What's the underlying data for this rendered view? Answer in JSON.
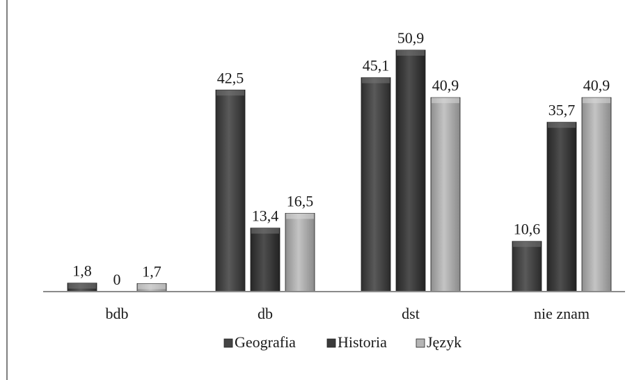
{
  "chart_data": {
    "type": "bar",
    "categories": [
      "bdb",
      "db",
      "dst",
      "nie znam"
    ],
    "series": [
      {
        "name": "Geografia",
        "values": [
          1.8,
          42.5,
          45.1,
          10.6
        ],
        "labels": [
          "1,8",
          "42,5",
          "45,1",
          "10,6"
        ]
      },
      {
        "name": "Historia",
        "values": [
          0,
          13.4,
          50.9,
          35.7
        ],
        "labels": [
          "0",
          "13,4",
          "50,9",
          "35,7"
        ]
      },
      {
        "name": "Język",
        "values": [
          1.7,
          16.5,
          40.9,
          40.9
        ],
        "labels": [
          "1,7",
          "16,5",
          "40,9",
          "40,9"
        ]
      }
    ],
    "ylim": [
      0,
      50.9
    ],
    "grid": false,
    "legend_position": "bottom",
    "colors": {
      "Geografia": "#4a4a4a",
      "Historia": "#3b3b3b",
      "Język": "#a9a9a9"
    }
  }
}
